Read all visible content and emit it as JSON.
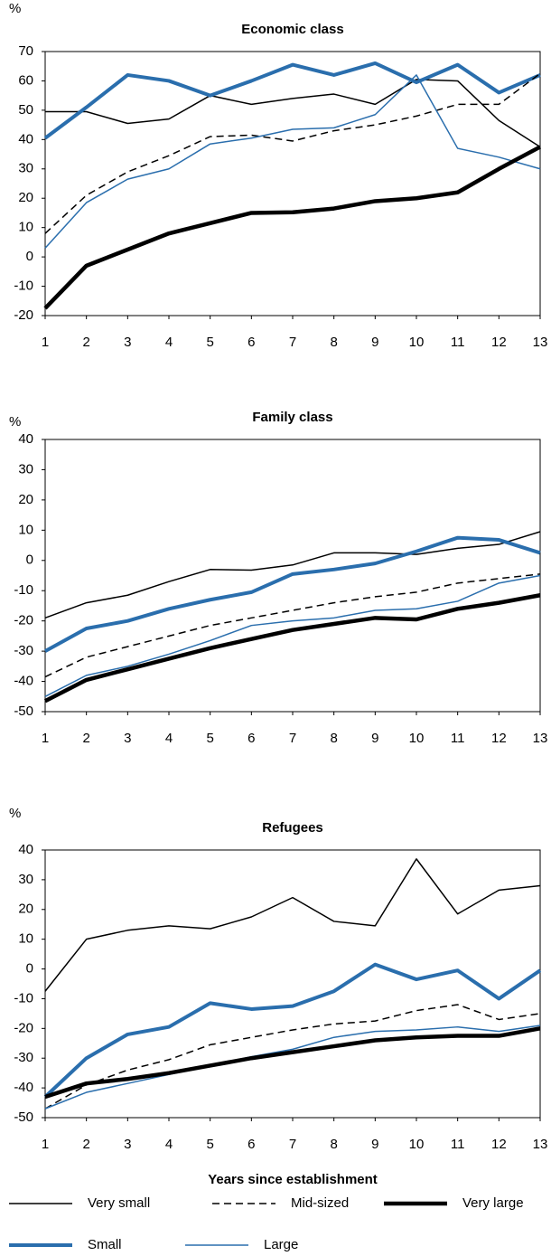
{
  "chart_data": [
    {
      "type": "line",
      "title": "Economic class",
      "ylabel": "%",
      "x": [
        1,
        2,
        3,
        4,
        5,
        6,
        7,
        8,
        9,
        10,
        11,
        12,
        13
      ],
      "xlim": [
        1,
        13
      ],
      "xticks": [
        1,
        2,
        3,
        4,
        5,
        6,
        7,
        8,
        9,
        10,
        11,
        12,
        13
      ],
      "ylim": [
        -20,
        70
      ],
      "yticks": [
        -20,
        -10,
        0,
        10,
        20,
        30,
        40,
        50,
        60,
        70
      ],
      "series": [
        {
          "name": "Very small",
          "color": "#000000",
          "width": 1.5,
          "dash": false,
          "values": [
            49.5,
            49.5,
            45.5,
            47,
            55,
            52,
            54,
            55.5,
            52,
            60.5,
            60,
            46.5,
            37.5
          ]
        },
        {
          "name": "Small",
          "color": "#2a6ead",
          "width": 4,
          "dash": false,
          "values": [
            40.5,
            51,
            62,
            60,
            55,
            60,
            65.5,
            62,
            66,
            59.5,
            65.5,
            56,
            62
          ]
        },
        {
          "name": "Mid-sized",
          "color": "#000000",
          "width": 1.5,
          "dash": true,
          "values": [
            8,
            21,
            29,
            34.5,
            41,
            41.5,
            39.5,
            43,
            45,
            48,
            52,
            52,
            62.5
          ]
        },
        {
          "name": "Large",
          "color": "#2a6ead",
          "width": 1.5,
          "dash": false,
          "values": [
            3,
            18.5,
            26.5,
            30,
            38.5,
            40.5,
            43.5,
            44,
            48.5,
            62,
            37,
            34,
            30
          ]
        },
        {
          "name": "Very large",
          "color": "#000000",
          "width": 4.5,
          "dash": false,
          "values": [
            -17.5,
            -3,
            2.5,
            8,
            11.5,
            15,
            15.2,
            16.5,
            19,
            20,
            22,
            30,
            37.5
          ]
        }
      ]
    },
    {
      "type": "line",
      "title": "Family class",
      "ylabel": "%",
      "x": [
        1,
        2,
        3,
        4,
        5,
        6,
        7,
        8,
        9,
        10,
        11,
        12,
        13
      ],
      "xlim": [
        1,
        13
      ],
      "xticks": [
        1,
        2,
        3,
        4,
        5,
        6,
        7,
        8,
        9,
        10,
        11,
        12,
        13
      ],
      "ylim": [
        -50,
        40
      ],
      "yticks": [
        -50,
        -40,
        -30,
        -20,
        -10,
        0,
        10,
        20,
        30,
        40
      ],
      "series": [
        {
          "color": "#000000",
          "width": 1.5,
          "dash": false,
          "values": [
            -19,
            -14,
            -11.5,
            -7,
            -3,
            -3.2,
            -1.5,
            2.5,
            2.5,
            2,
            4,
            5.3,
            9.5
          ]
        },
        {
          "color": "#2a6ead",
          "width": 4,
          "dash": false,
          "values": [
            -30,
            -22.5,
            -20,
            -16,
            -13,
            -10.5,
            -4.5,
            -3,
            -1,
            3,
            7.5,
            6.8,
            2.5
          ]
        },
        {
          "color": "#000000",
          "width": 1.5,
          "dash": true,
          "values": [
            -38.5,
            -32,
            -28.5,
            -25,
            -21.5,
            -19,
            -16.5,
            -14,
            -12,
            -10.5,
            -7.5,
            -6,
            -4.5
          ]
        },
        {
          "color": "#2a6ead",
          "width": 1.5,
          "dash": false,
          "values": [
            -45,
            -38,
            -35,
            -31,
            -26.5,
            -21.5,
            -20,
            -19,
            -16.5,
            -16,
            -13.5,
            -7.5,
            -5
          ]
        },
        {
          "color": "#000000",
          "width": 4.5,
          "dash": false,
          "values": [
            -46.5,
            -39.5,
            -36,
            -32.5,
            -29,
            -26,
            -23,
            -21,
            -19,
            -19.5,
            -16,
            -14,
            -11.5
          ]
        }
      ]
    },
    {
      "type": "line",
      "title": "Refugees",
      "ylabel": "%",
      "xlabel": "Years since establishment",
      "x": [
        1,
        2,
        3,
        4,
        5,
        6,
        7,
        8,
        9,
        10,
        11,
        12,
        13
      ],
      "xlim": [
        1,
        13
      ],
      "xticks": [
        1,
        2,
        3,
        4,
        5,
        6,
        7,
        8,
        9,
        10,
        11,
        12,
        13
      ],
      "ylim": [
        -50,
        40
      ],
      "yticks": [
        -50,
        -40,
        -30,
        -20,
        -10,
        0,
        10,
        20,
        30,
        40
      ],
      "series": [
        {
          "color": "#000000",
          "width": 1.5,
          "dash": false,
          "values": [
            -7.5,
            10,
            13,
            14.5,
            13.5,
            17.5,
            24,
            16,
            14.5,
            37,
            18.5,
            26.5,
            28
          ]
        },
        {
          "color": "#2a6ead",
          "width": 4,
          "dash": false,
          "values": [
            -43,
            -30,
            -22,
            -19.5,
            -11.5,
            -13.5,
            -12.5,
            -7.5,
            1.5,
            -3.5,
            -0.5,
            -10,
            -0.5
          ]
        },
        {
          "color": "#000000",
          "width": 1.5,
          "dash": true,
          "values": [
            -47,
            -39,
            -34,
            -30.5,
            -25.5,
            -23,
            -20.5,
            -18.5,
            -17.5,
            -14,
            -12,
            -17,
            -15
          ]
        },
        {
          "color": "#2a6ead",
          "width": 1.5,
          "dash": false,
          "values": [
            -47,
            -41.5,
            -38.5,
            -35.5,
            -32.5,
            -29.5,
            -27,
            -23,
            -21,
            -20.5,
            -19.5,
            -21,
            -19
          ]
        },
        {
          "color": "#000000",
          "width": 4.5,
          "dash": false,
          "values": [
            -43,
            -38.5,
            -37,
            -35,
            -32.5,
            -30,
            -28,
            -26,
            -24,
            -23,
            -22.5,
            -22.5,
            -20
          ]
        }
      ]
    }
  ]
}
